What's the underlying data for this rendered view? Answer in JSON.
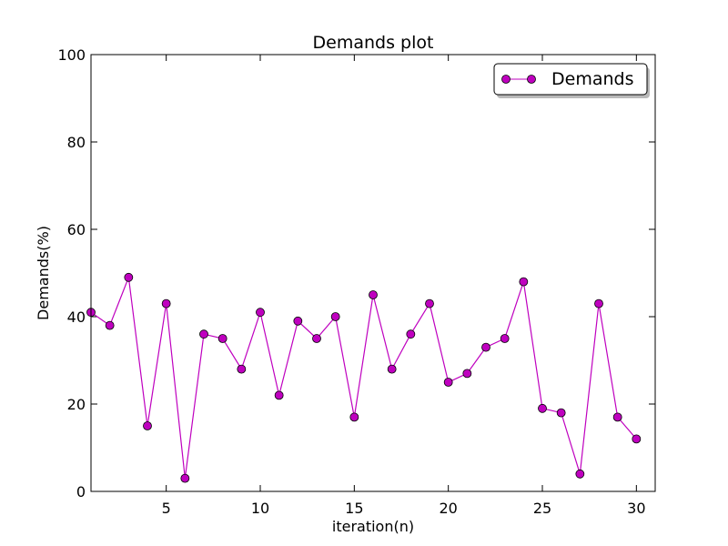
{
  "chart_data": {
    "type": "line",
    "title": "Demands plot",
    "xlabel": "iteration(n)",
    "ylabel": "Demands(%)",
    "xlim": [
      1,
      31
    ],
    "ylim": [
      0,
      100
    ],
    "xticks": [
      "5",
      "10",
      "15",
      "20",
      "25",
      "30"
    ],
    "yticks": [
      "0",
      "20",
      "40",
      "60",
      "80",
      "100"
    ],
    "grid": false,
    "legend_position": "top-right",
    "line_color": "#bf00bf",
    "marker_color": "#bf00bf",
    "x": [
      1,
      2,
      3,
      4,
      5,
      6,
      7,
      8,
      9,
      10,
      11,
      12,
      13,
      14,
      15,
      16,
      17,
      18,
      19,
      20,
      21,
      22,
      23,
      24,
      25,
      26,
      27,
      28,
      29,
      30
    ],
    "series": [
      {
        "name": "Demands",
        "values": [
          41,
          38,
          49,
          15,
          43,
          3,
          36,
          35,
          28,
          41,
          22,
          39,
          35,
          40,
          17,
          45,
          28,
          36,
          43,
          25,
          27,
          33,
          35,
          48,
          19,
          18,
          4,
          43,
          17,
          12
        ]
      }
    ]
  }
}
